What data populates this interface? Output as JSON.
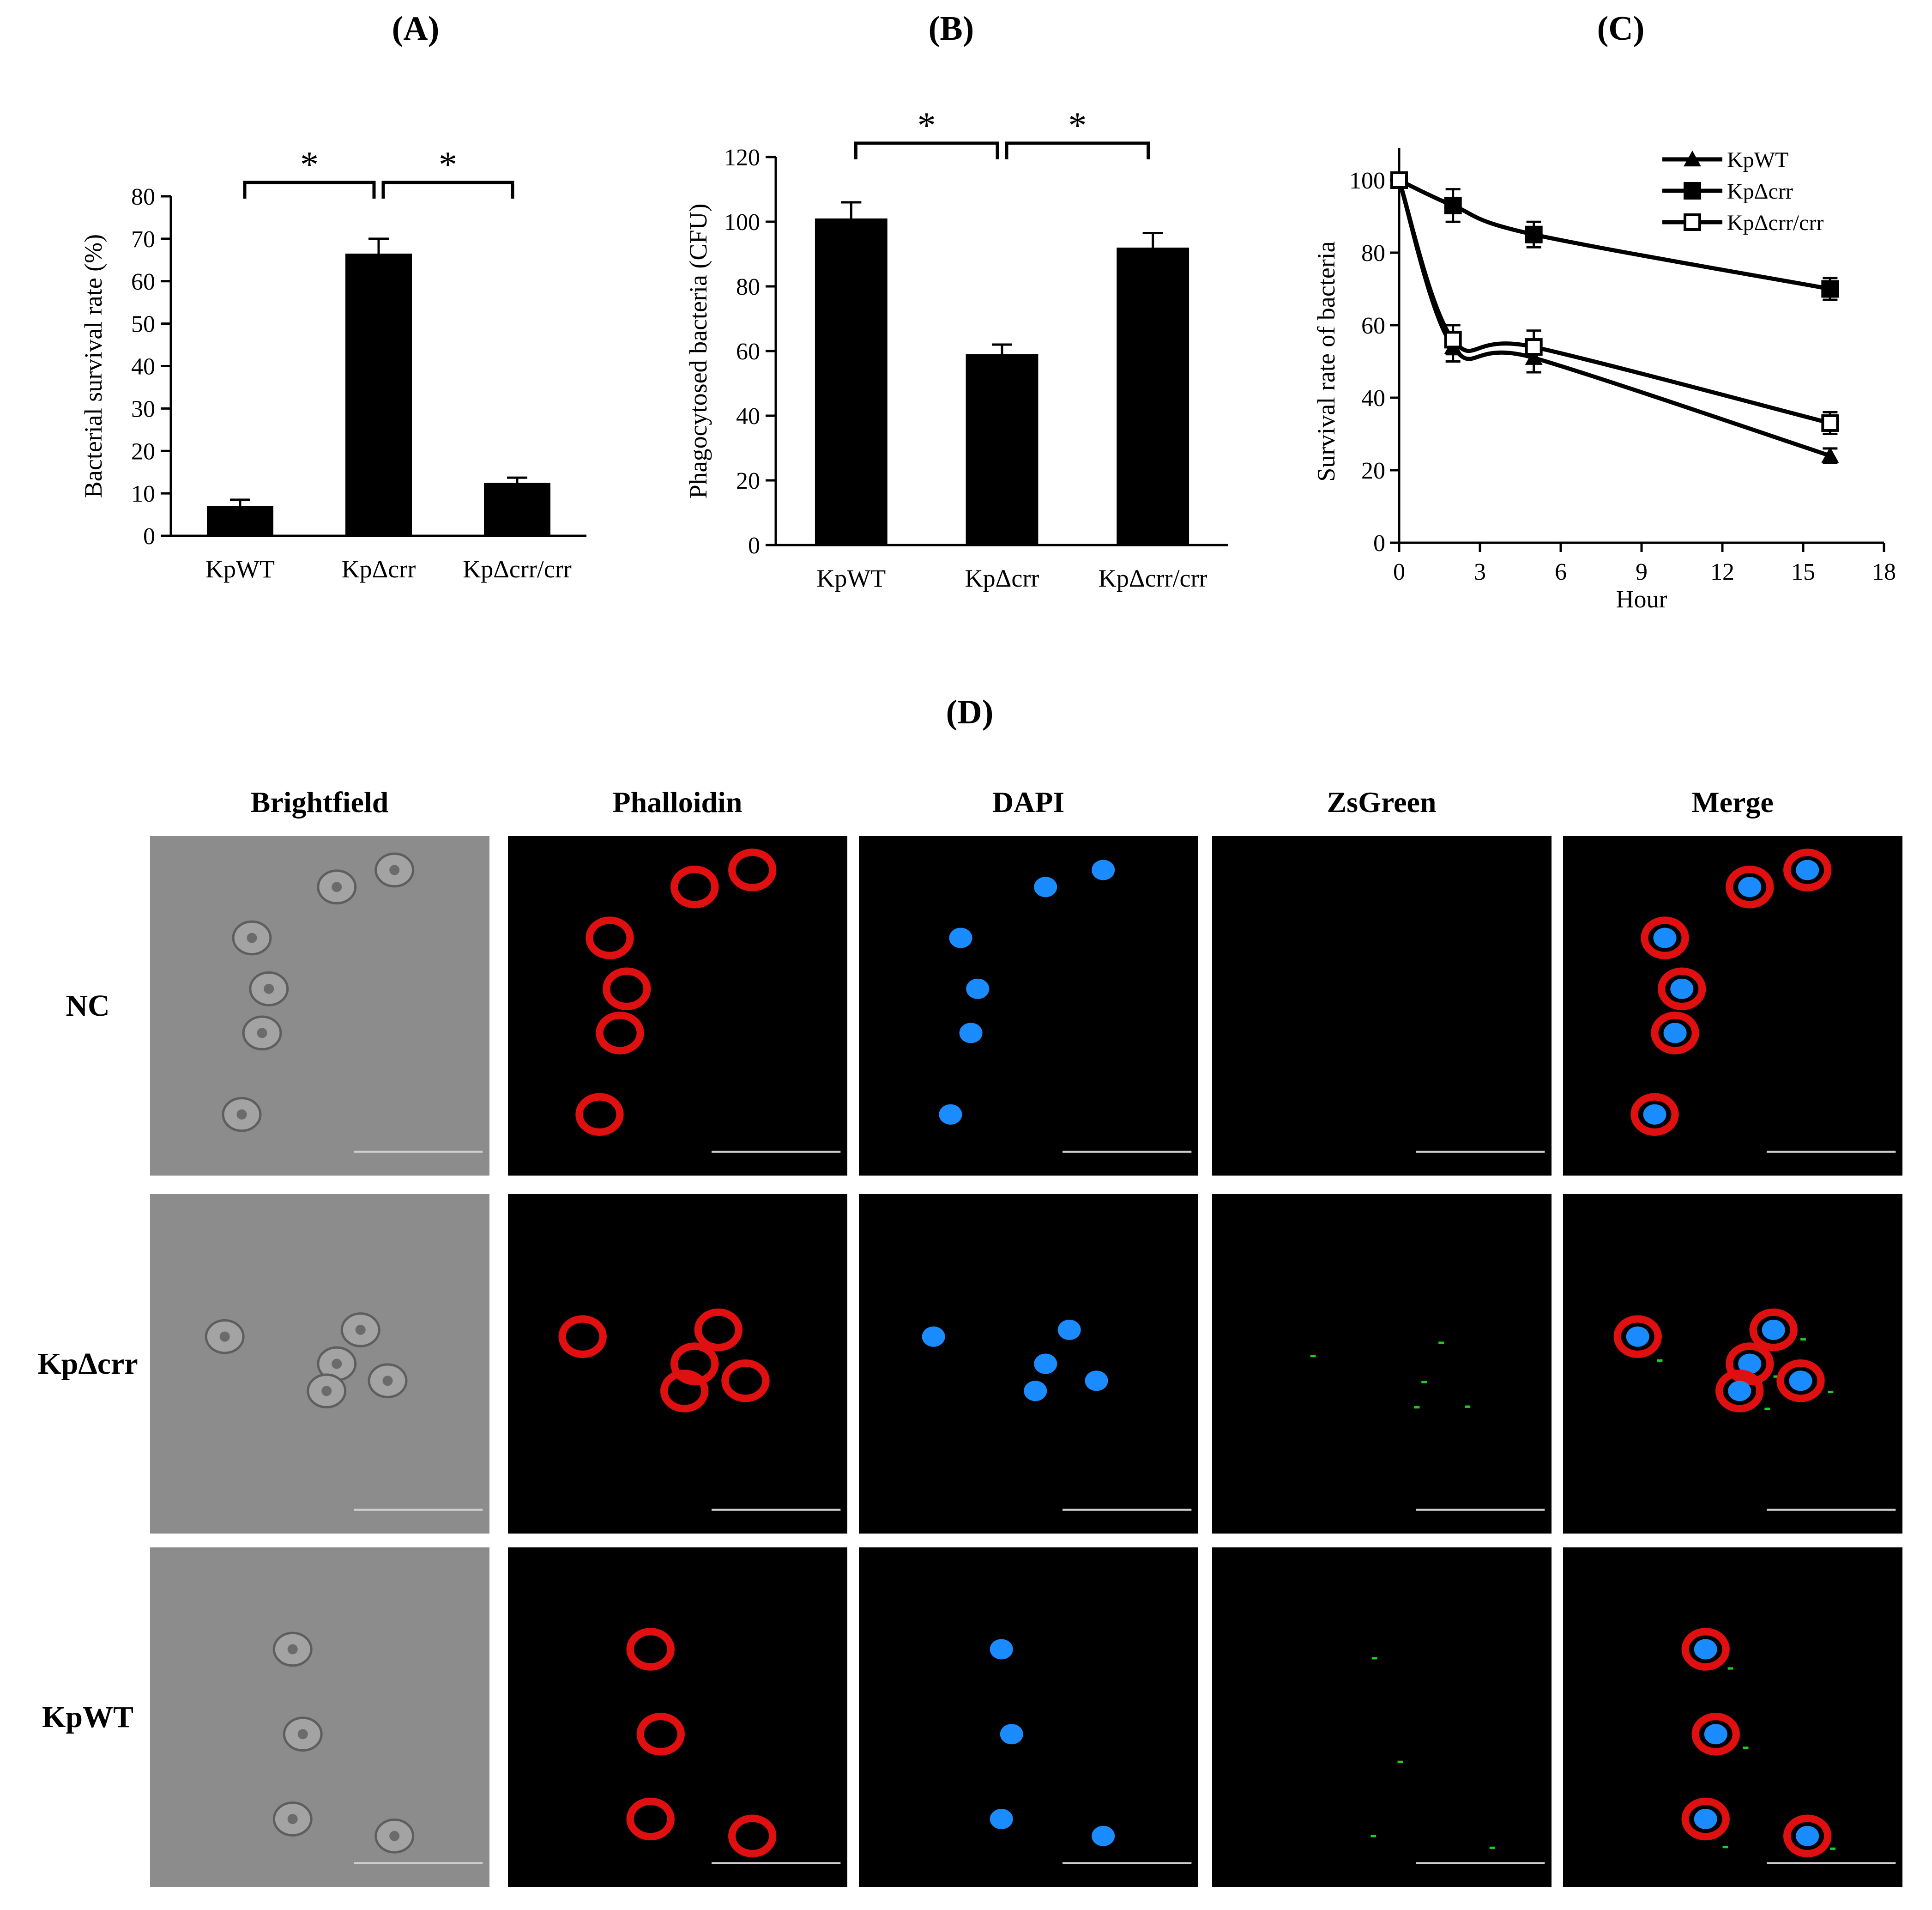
{
  "panels": {
    "a": "(A)",
    "b": "(B)",
    "c": "(C)",
    "d": "(D)"
  },
  "chart_data": [
    {
      "type": "bar",
      "panel": "A",
      "categories": [
        "KpWT",
        "KpΔcrr",
        "KpΔcrr/crr"
      ],
      "values": [
        7,
        66.5,
        12.5
      ],
      "errors": [
        1.5,
        3.5,
        1.2
      ],
      "ylabel": "Bacterial survival rate (%)",
      "ylim": [
        0,
        80
      ],
      "yticks": [
        0,
        10,
        20,
        30,
        40,
        50,
        60,
        70,
        80
      ],
      "significance": [
        {
          "from": 0,
          "to": 1,
          "label": "*"
        },
        {
          "from": 1,
          "to": 2,
          "label": "*"
        }
      ],
      "bar_color": "#000000"
    },
    {
      "type": "bar",
      "panel": "B",
      "categories": [
        "KpWT",
        "KpΔcrr",
        "KpΔcrr/crr"
      ],
      "values": [
        101,
        59,
        92
      ],
      "errors": [
        5,
        3,
        4.5
      ],
      "ylabel": "Phagocytosed bacteria (CFU)",
      "ylim": [
        0,
        120
      ],
      "yticks": [
        0,
        20,
        40,
        60,
        80,
        100,
        120
      ],
      "significance": [
        {
          "from": 0,
          "to": 1,
          "label": "*"
        },
        {
          "from": 1,
          "to": 2,
          "label": "*"
        }
      ],
      "bar_color": "#000000"
    },
    {
      "type": "line",
      "panel": "C",
      "xlabel": "Hour",
      "ylabel": "Survival rate of bacteria",
      "xlim": [
        0,
        18
      ],
      "ylim": [
        0,
        100
      ],
      "xticks": [
        0,
        3,
        6,
        9,
        12,
        15,
        18
      ],
      "yticks": [
        0,
        20,
        40,
        60,
        80,
        100
      ],
      "x": [
        0,
        2,
        5,
        16
      ],
      "legend_position": "top-right",
      "series": [
        {
          "name": "KpWT",
          "marker": "triangle",
          "values": [
            100,
            54,
            51,
            24
          ],
          "errors": [
            0,
            4,
            4,
            2
          ]
        },
        {
          "name": "KpΔcrr",
          "marker": "square-filled",
          "values": [
            100,
            93,
            85,
            70
          ],
          "errors": [
            0,
            4.5,
            3.5,
            3
          ]
        },
        {
          "name": "KpΔcrr/crr",
          "marker": "square-open",
          "values": [
            100,
            56,
            54,
            33
          ],
          "errors": [
            0,
            4,
            4.5,
            3
          ]
        }
      ]
    }
  ],
  "microscopy": {
    "columns": [
      "Brightfield",
      "Phalloidin",
      "DAPI",
      "ZsGreen",
      "Merge"
    ],
    "rows": [
      "NC",
      "KpΔcrr",
      "KpWT"
    ],
    "channel_colors": {
      "Brightfield": "#8a8a8a",
      "Phalloidin": "#e01010",
      "DAPI": "#1a8cff",
      "ZsGreen": "#22cc22",
      "Merge": "#000000"
    }
  }
}
